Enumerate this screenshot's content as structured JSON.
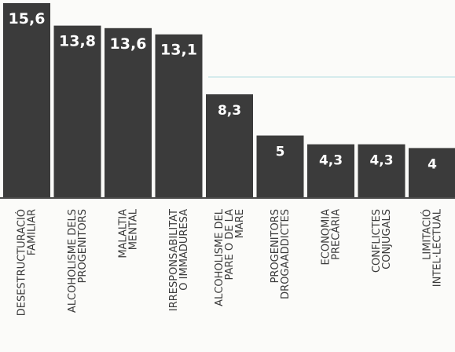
{
  "chart_data": {
    "type": "bar",
    "categories": [
      [
        "DESESTRUCTURACIÓ",
        "FAMILIAR"
      ],
      [
        "ALCOHOLISME DELS",
        "PROGENITORS"
      ],
      [
        "MALALTIA",
        "MENTAL"
      ],
      [
        "IRRESPONSABILITAT",
        "O IMMADURESA"
      ],
      [
        "ALCOHOLISME DEL",
        "PARE O DE LA",
        "MARE"
      ],
      [
        "PROGENITORS",
        "DROGAADDICTES"
      ],
      [
        "ECONOMIA",
        "PRECÀRIA"
      ],
      [
        "CONFLICTES",
        "CONJUGALS"
      ],
      [
        "LIMITACIÓ",
        "INTEL·LECTUAL"
      ]
    ],
    "values": [
      15.6,
      13.8,
      13.6,
      13.1,
      8.3,
      5,
      4.3,
      4.3,
      4
    ],
    "value_labels": [
      "15,6",
      "13,8",
      "13,6",
      "13,1",
      "8,3",
      "5",
      "4,3",
      "4,3",
      "4"
    ],
    "ylim": [
      0,
      15.6
    ],
    "bar_color": "#3b3b3b",
    "label_color": "#ffffff",
    "reference_line_color": "#bfe3e6",
    "grid": false
  }
}
